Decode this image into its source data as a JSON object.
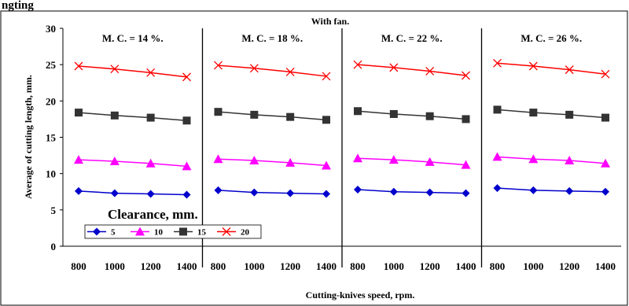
{
  "chart_data": {
    "type": "line",
    "cut_title": "ngting",
    "title": "With fan.",
    "xlabel": "Cutting-knives speed, rpm.",
    "ylabel": "Average of cutting length, mm.",
    "ylim": [
      0,
      30
    ],
    "yticks": [
      "0",
      "5",
      "10",
      "15",
      "20",
      "25",
      "30"
    ],
    "x": [
      800,
      1000,
      1200,
      1400
    ],
    "xtick_labels": [
      "800",
      "1000",
      "1200",
      "1400"
    ],
    "legend": {
      "title": "Clearance, mm.",
      "placement": "lower-left",
      "entries": [
        "5",
        "10",
        "15",
        "20"
      ]
    },
    "colors": {
      "5": "#0000cc",
      "10": "#ff00ff",
      "15": "#333333",
      "20": "#ff0000"
    },
    "markers": {
      "5": "diamond",
      "10": "triangle",
      "15": "square",
      "20": "x"
    },
    "panels": [
      {
        "label": "M. C. = 14 %.",
        "series": [
          {
            "name": "5",
            "values": [
              7.6,
              7.3,
              7.2,
              7.1
            ]
          },
          {
            "name": "10",
            "values": [
              11.9,
              11.7,
              11.4,
              11.0
            ]
          },
          {
            "name": "15",
            "values": [
              18.4,
              18.0,
              17.7,
              17.3
            ]
          },
          {
            "name": "20",
            "values": [
              24.8,
              24.4,
              23.9,
              23.3
            ]
          }
        ]
      },
      {
        "label": "M. C. = 18 %.",
        "series": [
          {
            "name": "5",
            "values": [
              7.7,
              7.4,
              7.3,
              7.2
            ]
          },
          {
            "name": "10",
            "values": [
              12.0,
              11.8,
              11.5,
              11.1
            ]
          },
          {
            "name": "15",
            "values": [
              18.5,
              18.1,
              17.8,
              17.4
            ]
          },
          {
            "name": "20",
            "values": [
              24.9,
              24.5,
              24.0,
              23.4
            ]
          }
        ]
      },
      {
        "label": "M. C. = 22 %.",
        "series": [
          {
            "name": "5",
            "values": [
              7.8,
              7.5,
              7.4,
              7.3
            ]
          },
          {
            "name": "10",
            "values": [
              12.1,
              11.9,
              11.6,
              11.2
            ]
          },
          {
            "name": "15",
            "values": [
              18.6,
              18.2,
              17.9,
              17.5
            ]
          },
          {
            "name": "20",
            "values": [
              25.0,
              24.6,
              24.1,
              23.5
            ]
          }
        ]
      },
      {
        "label": "M. C. = 26 %.",
        "series": [
          {
            "name": "5",
            "values": [
              8.0,
              7.7,
              7.6,
              7.5
            ]
          },
          {
            "name": "10",
            "values": [
              12.3,
              12.0,
              11.8,
              11.4
            ]
          },
          {
            "name": "15",
            "values": [
              18.8,
              18.4,
              18.1,
              17.7
            ]
          },
          {
            "name": "20",
            "values": [
              25.2,
              24.8,
              24.3,
              23.7
            ]
          }
        ]
      }
    ]
  }
}
